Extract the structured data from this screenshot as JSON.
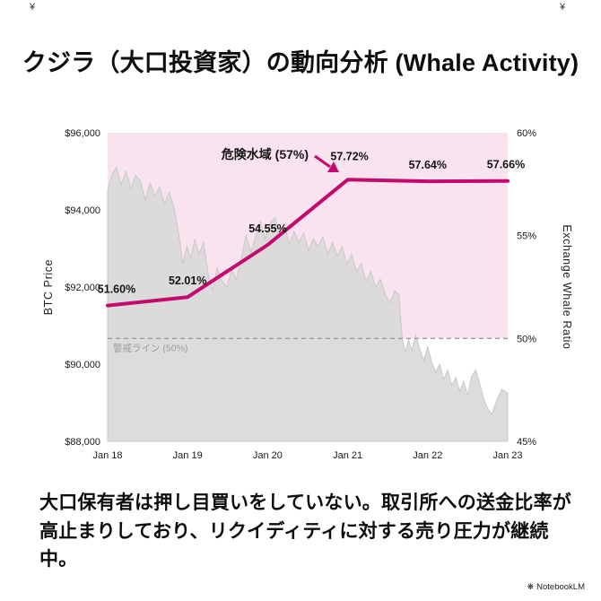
{
  "title": "クジラ（大口投資家）の動向分析 (Whale Activity)",
  "corner_marks": {
    "left": "¥",
    "right": "¥"
  },
  "footer_text": "大口保有者は押し目買いをしていない。取引所への送金比率が高止まりしており、リクイディティに対する売り圧力が継続中。",
  "credit": {
    "brand": "NotebookLM"
  },
  "chart_data": {
    "type": "line",
    "title": "クジラ（大口投資家）の動向分析 (Whale Activity)",
    "x_categories": [
      "Jan 18",
      "Jan 19",
      "Jan 20",
      "Jan 21",
      "Jan 22",
      "Jan 23"
    ],
    "left_axis": {
      "label": "BTC Price",
      "range": [
        88000,
        96000
      ],
      "ticks": [
        {
          "value": 96000,
          "label": "$96,000"
        },
        {
          "value": 94000,
          "label": "$94,000"
        },
        {
          "value": 92000,
          "label": "$92,000"
        },
        {
          "value": 90000,
          "label": "$90,000"
        },
        {
          "value": 88000,
          "label": "$88,000"
        }
      ]
    },
    "right_axis": {
      "label": "Exchange Whale Ratio",
      "range": [
        45,
        60
      ],
      "ticks": [
        {
          "value": 60,
          "label": "60%"
        },
        {
          "value": 55,
          "label": "55%"
        },
        {
          "value": 50,
          "label": "50%"
        },
        {
          "value": 45,
          "label": "45%"
        }
      ]
    },
    "band": {
      "axis": "right",
      "from": 50,
      "to": 60,
      "color": "#f8e3ef"
    },
    "series": [
      {
        "name": "Exchange Whale Ratio",
        "type": "line",
        "axis": "right",
        "color": "#c40a6d",
        "values": [
          51.6,
          52.01,
          54.55,
          57.72,
          57.64,
          57.66
        ],
        "point_labels": [
          "51.60%",
          "52.01%",
          "54.55%",
          "57.72%",
          "57.64%",
          "57.66%"
        ]
      },
      {
        "name": "BTC Price",
        "type": "area",
        "axis": "left",
        "color": "#d8d8d8",
        "points": [
          [
            0.0,
            94500
          ],
          [
            0.01,
            94900
          ],
          [
            0.022,
            95100
          ],
          [
            0.034,
            94650
          ],
          [
            0.046,
            95000
          ],
          [
            0.058,
            94550
          ],
          [
            0.07,
            94900
          ],
          [
            0.082,
            94750
          ],
          [
            0.094,
            94250
          ],
          [
            0.106,
            94700
          ],
          [
            0.118,
            94350
          ],
          [
            0.13,
            94600
          ],
          [
            0.142,
            94150
          ],
          [
            0.154,
            94450
          ],
          [
            0.166,
            94050
          ],
          [
            0.178,
            93350
          ],
          [
            0.188,
            92600
          ],
          [
            0.198,
            93050
          ],
          [
            0.208,
            92750
          ],
          [
            0.218,
            93250
          ],
          [
            0.228,
            92850
          ],
          [
            0.24,
            93150
          ],
          [
            0.252,
            92300
          ],
          [
            0.262,
            91900
          ],
          [
            0.274,
            92500
          ],
          [
            0.286,
            92150
          ],
          [
            0.298,
            92000
          ],
          [
            0.31,
            92450
          ],
          [
            0.322,
            92200
          ],
          [
            0.334,
            92750
          ],
          [
            0.346,
            93350
          ],
          [
            0.358,
            92900
          ],
          [
            0.37,
            93300
          ],
          [
            0.382,
            93700
          ],
          [
            0.394,
            93250
          ],
          [
            0.406,
            93650
          ],
          [
            0.418,
            93800
          ],
          [
            0.43,
            93300
          ],
          [
            0.442,
            93600
          ],
          [
            0.454,
            93100
          ],
          [
            0.466,
            93450
          ],
          [
            0.478,
            93150
          ],
          [
            0.49,
            93400
          ],
          [
            0.502,
            92950
          ],
          [
            0.514,
            93250
          ],
          [
            0.526,
            93050
          ],
          [
            0.538,
            93300
          ],
          [
            0.55,
            92850
          ],
          [
            0.562,
            93150
          ],
          [
            0.574,
            92800
          ],
          [
            0.586,
            93050
          ],
          [
            0.598,
            92600
          ],
          [
            0.61,
            92850
          ],
          [
            0.622,
            92400
          ],
          [
            0.634,
            92600
          ],
          [
            0.646,
            92150
          ],
          [
            0.658,
            92400
          ],
          [
            0.67,
            92000
          ],
          [
            0.682,
            92200
          ],
          [
            0.694,
            91800
          ],
          [
            0.706,
            91600
          ],
          [
            0.718,
            91900
          ],
          [
            0.728,
            91800
          ],
          [
            0.736,
            90700
          ],
          [
            0.744,
            90300
          ],
          [
            0.752,
            90650
          ],
          [
            0.76,
            90350
          ],
          [
            0.77,
            90750
          ],
          [
            0.78,
            90400
          ],
          [
            0.79,
            90100
          ],
          [
            0.8,
            90450
          ],
          [
            0.81,
            90050
          ],
          [
            0.82,
            89800
          ],
          [
            0.83,
            90000
          ],
          [
            0.84,
            89600
          ],
          [
            0.85,
            89850
          ],
          [
            0.86,
            89450
          ],
          [
            0.87,
            89650
          ],
          [
            0.88,
            89300
          ],
          [
            0.89,
            89550
          ],
          [
            0.9,
            89200
          ],
          [
            0.91,
            89700
          ],
          [
            0.92,
            89850
          ],
          [
            0.93,
            89500
          ],
          [
            0.94,
            89100
          ],
          [
            0.95,
            88850
          ],
          [
            0.96,
            88700
          ],
          [
            0.972,
            89050
          ],
          [
            0.985,
            89350
          ],
          [
            1.0,
            89250
          ]
        ]
      }
    ],
    "annotations": {
      "danger_zone": {
        "text": "危険水域 (57%)",
        "color": "#c40a6d"
      },
      "alert_line": {
        "text": "警戒ライン (50%)",
        "value": 50,
        "color": "#9b9b9b",
        "style": "dashed"
      }
    },
    "legend": false,
    "grid": false
  }
}
